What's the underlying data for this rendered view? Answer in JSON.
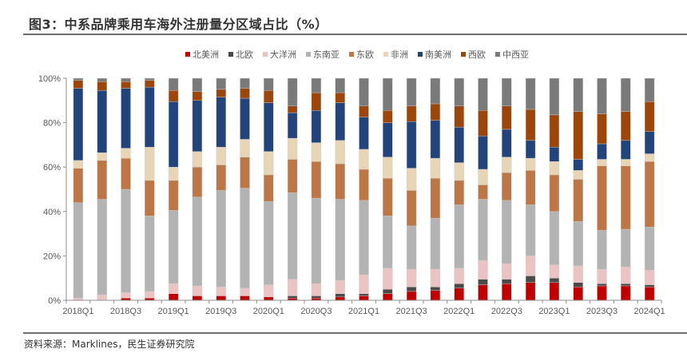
{
  "title": "图3：中系品牌乘用车海外注册量分区域占比（%）",
  "source": "资料来源：Marklines，民生证券研究院",
  "chart_data": {
    "type": "bar",
    "stacked": true,
    "percent": true,
    "title": "中系品牌乘用车海外注册量分区域占比（%）",
    "xlabel": "",
    "ylabel": "",
    "ylim": [
      0,
      100
    ],
    "yticks": [
      "0%",
      "20%",
      "40%",
      "60%",
      "80%",
      "100%"
    ],
    "legend_position": "top",
    "grid": false,
    "categories": [
      "2018Q1",
      "2018Q2",
      "2018Q3",
      "2018Q4",
      "2019Q1",
      "2019Q2",
      "2019Q3",
      "2019Q4",
      "2020Q1",
      "2020Q2",
      "2020Q3",
      "2020Q4",
      "2021Q1",
      "2021Q2",
      "2021Q3",
      "2021Q4",
      "2022Q1",
      "2022Q2",
      "2022Q3",
      "2022Q4",
      "2023Q1",
      "2023Q2",
      "2023Q3",
      "2023Q4",
      "2024Q1"
    ],
    "xtick_labels": [
      "2018Q1",
      "2018Q3",
      "2019Q1",
      "2019Q3",
      "2020Q1",
      "2020Q3",
      "2021Q1",
      "2021Q3",
      "2022Q1",
      "2022Q3",
      "2023Q1",
      "2023Q3",
      "2024Q1"
    ],
    "series": [
      {
        "name": "北美洲",
        "color": "#c00000",
        "values": [
          0,
          0,
          1,
          1,
          3,
          2,
          2,
          2,
          1.5,
          1,
          1,
          1.5,
          2,
          3,
          4,
          4.5,
          5.5,
          7,
          7.5,
          8,
          8,
          6,
          6.5,
          6.5,
          6
        ]
      },
      {
        "name": "北欧",
        "color": "#4a4a4a",
        "values": [
          0,
          0,
          0,
          0,
          0,
          0,
          0,
          0,
          0,
          1,
          1,
          1.5,
          1,
          2,
          2,
          1.5,
          2,
          2.5,
          2,
          3,
          2,
          2,
          1,
          1,
          1
        ]
      },
      {
        "name": "大洋洲",
        "color": "#ecc3c3",
        "values": [
          1,
          2.5,
          2.5,
          3,
          4.5,
          4.5,
          4,
          3.5,
          5.5,
          7.5,
          5.5,
          6,
          8.5,
          9.5,
          8,
          8,
          7,
          8.5,
          7,
          9,
          6,
          7.5,
          6.5,
          7.5,
          6.5
        ]
      },
      {
        "name": "东南亚",
        "color": "#b3b3b3",
        "values": [
          43,
          43,
          46.5,
          34,
          33,
          40,
          43.5,
          45,
          37.5,
          39,
          38.5,
          36.5,
          33.5,
          23.5,
          19.5,
          23,
          28.5,
          27.5,
          28.5,
          23,
          24,
          20,
          17.5,
          17,
          19.5
        ]
      },
      {
        "name": "东欧",
        "color": "#bd7746",
        "values": [
          15.5,
          17.5,
          14,
          16,
          13.5,
          13.5,
          11.5,
          14,
          12,
          15,
          16.5,
          16,
          14,
          17,
          16,
          18,
          11,
          6.5,
          12.5,
          15.5,
          16.5,
          19,
          29,
          28.5,
          29.5
        ]
      },
      {
        "name": "非洲",
        "color": "#e8d5b5",
        "values": [
          3.5,
          3.5,
          4.5,
          15,
          6,
          7,
          8,
          8,
          10.5,
          9.5,
          8.5,
          10.5,
          9,
          9.5,
          10,
          9,
          8,
          7,
          7,
          5.5,
          6,
          4,
          3,
          3,
          3.5
        ]
      },
      {
        "name": "南美洲",
        "color": "#23447a",
        "values": [
          32.5,
          28,
          27,
          27,
          29.5,
          23,
          22.5,
          18.5,
          22,
          11.5,
          14.5,
          17,
          14.5,
          15.5,
          21,
          17,
          16,
          15,
          12.5,
          8,
          6.5,
          5,
          7,
          8.5,
          10
        ]
      },
      {
        "name": "西欧",
        "color": "#9c460b",
        "values": [
          3.5,
          4,
          3,
          3,
          5,
          4,
          3.5,
          4.5,
          5.5,
          3,
          8,
          4.5,
          5,
          5.5,
          7,
          7.5,
          9.5,
          11.5,
          10.5,
          14,
          14.5,
          21.5,
          13.5,
          13,
          13.5
        ]
      },
      {
        "name": "中西亚",
        "color": "#7a7a7a",
        "values": [
          1,
          1.5,
          1.5,
          1,
          5.5,
          6,
          5,
          4.5,
          5.5,
          12.5,
          6.5,
          6.5,
          12.5,
          14.5,
          12.5,
          11.5,
          12.5,
          14.5,
          12.5,
          14,
          16.5,
          15,
          16,
          15,
          10.5
        ]
      }
    ]
  }
}
